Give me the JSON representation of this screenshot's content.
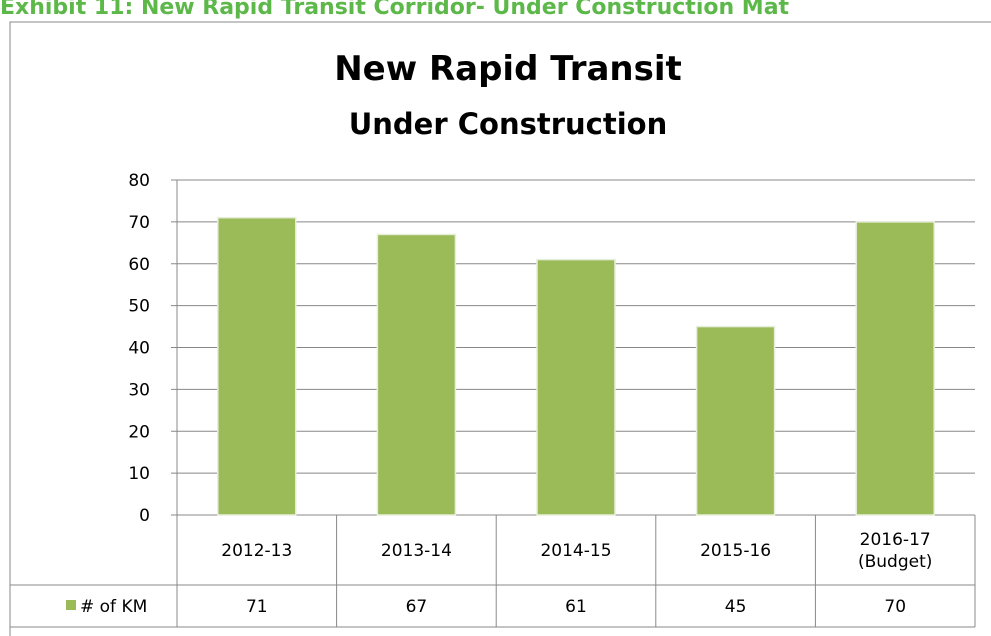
{
  "header": "Exhibit 11: New Rapid Transit Corridor- Under Construction Mat",
  "chart_data": {
    "type": "bar",
    "title": "New Rapid Transit",
    "subtitle": "Under Construction",
    "categories": [
      "2012-13",
      "2013-14",
      "2014-15",
      "2015-16",
      "2016-17\n(Budget)"
    ],
    "series": [
      {
        "name": "# of KM",
        "color": "#9bbb59",
        "values": [
          71,
          67,
          61,
          45,
          70
        ]
      }
    ],
    "ylim": [
      0,
      80
    ],
    "yticks": [
      0,
      10,
      20,
      30,
      40,
      50,
      60,
      70,
      80
    ],
    "grid": true
  }
}
